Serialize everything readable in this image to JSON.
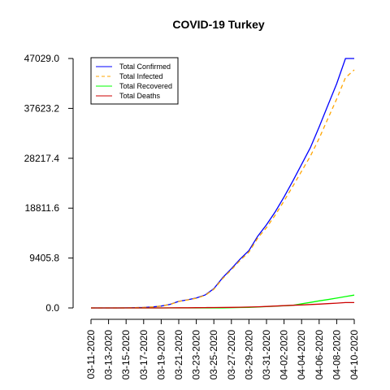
{
  "chart_data": {
    "type": "line",
    "title": "COVID-19 Turkey",
    "xlabel": "",
    "ylabel": "",
    "ylim": [
      0,
      47029.0
    ],
    "yticks": [
      "0.0",
      "9405.8",
      "18811.6",
      "28217.4",
      "37623.2",
      "47029.0"
    ],
    "ytick_values": [
      0,
      9405.8,
      18811.6,
      28217.4,
      37623.2,
      47029.0
    ],
    "x": [
      "03-11-2020",
      "03-12-2020",
      "03-13-2020",
      "03-14-2020",
      "03-15-2020",
      "03-16-2020",
      "03-17-2020",
      "03-18-2020",
      "03-19-2020",
      "03-20-2020",
      "03-21-2020",
      "03-22-2020",
      "03-23-2020",
      "03-24-2020",
      "03-25-2020",
      "03-26-2020",
      "03-27-2020",
      "03-28-2020",
      "03-29-2020",
      "03-30-2020",
      "03-31-2020",
      "04-01-2020",
      "04-02-2020",
      "04-03-2020",
      "04-04-2020",
      "04-05-2020",
      "04-06-2020",
      "04-07-2020",
      "04-08-2020",
      "04-09-2020",
      "04-10-2020"
    ],
    "xticks": [
      "03-11-2020",
      "03-13-2020",
      "03-15-2020",
      "03-17-2020",
      "03-19-2020",
      "03-21-2020",
      "03-23-2020",
      "03-25-2020",
      "03-27-2020",
      "03-29-2020",
      "03-31-2020",
      "04-02-2020",
      "04-04-2020",
      "04-06-2020",
      "04-08-2020",
      "04-10-2020"
    ],
    "legend_position": "top-left",
    "grid": false,
    "series": [
      {
        "name": "Total Confirmed",
        "color": "#0000ff",
        "dash": "solid",
        "values": [
          1,
          1,
          5,
          6,
          18,
          47,
          98,
          191,
          359,
          670,
          1236,
          1529,
          1872,
          2433,
          3629,
          5698,
          7402,
          9217,
          10827,
          13531,
          15679,
          18135,
          20921,
          23934,
          27069,
          30217,
          34109,
          38226,
          42282,
          47029,
          47029
        ]
      },
      {
        "name": "Total Infected",
        "color": "#ffa500",
        "dash": "dashed",
        "values": [
          1,
          1,
          5,
          6,
          18,
          47,
          98,
          190,
          357,
          666,
          1221,
          1501,
          1822,
          2359,
          3527,
          5531,
          7200,
          8972,
          10533,
          13170,
          15153,
          17530,
          20170,
          22955,
          25782,
          28612,
          31971,
          35710,
          39393,
          43417,
          44883
        ]
      },
      {
        "name": "Total Recovered",
        "color": "#00ff00",
        "dash": "solid",
        "values": [
          0,
          0,
          0,
          0,
          0,
          0,
          0,
          0,
          0,
          0,
          0,
          0,
          0,
          0,
          0,
          0,
          42,
          70,
          105,
          162,
          243,
          333,
          415,
          484,
          786,
          1042,
          1326,
          1582,
          1846,
          2142,
          2423
        ]
      },
      {
        "name": "Total Deaths",
        "color": "#cd0000",
        "dash": "solid",
        "values": [
          0,
          0,
          0,
          0,
          0,
          1,
          1,
          2,
          4,
          9,
          30,
          37,
          44,
          59,
          75,
          92,
          108,
          131,
          168,
          214,
          277,
          356,
          425,
          501,
          574,
          649,
          725,
          812,
          908,
          1006,
          1006
        ]
      }
    ]
  }
}
